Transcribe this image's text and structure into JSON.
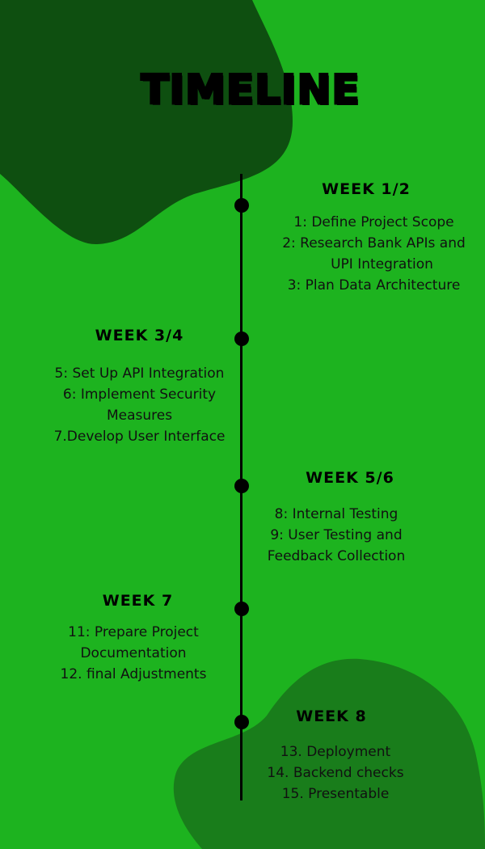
{
  "title": "TIMELINE",
  "colors": {
    "background": "#1db31f",
    "blob_dark": "#0e4f10",
    "blob_mid": "#197d1b",
    "line": "#000000"
  },
  "weeks": [
    {
      "heading": "WEEK 1/2",
      "items": [
        "1: Define Project Scope",
        "2: Research Bank APIs and",
        "UPI Integration",
        "3: Plan Data Architecture"
      ]
    },
    {
      "heading": "WEEK 3/4",
      "items": [
        "5: Set Up API Integration",
        "6: Implement Security",
        "Measures",
        "7.Develop User Interface"
      ]
    },
    {
      "heading": "WEEK 5/6",
      "items": [
        "8:  Internal Testing",
        "9: User Testing and",
        "Feedback Collection"
      ]
    },
    {
      "heading": "WEEK 7",
      "items": [
        "11: Prepare Project",
        "Documentation",
        "12.  final Adjustments"
      ]
    },
    {
      "heading": "WEEK 8",
      "items": [
        "13. Deployment",
        "14. Backend checks",
        "15. Presentable"
      ]
    }
  ]
}
